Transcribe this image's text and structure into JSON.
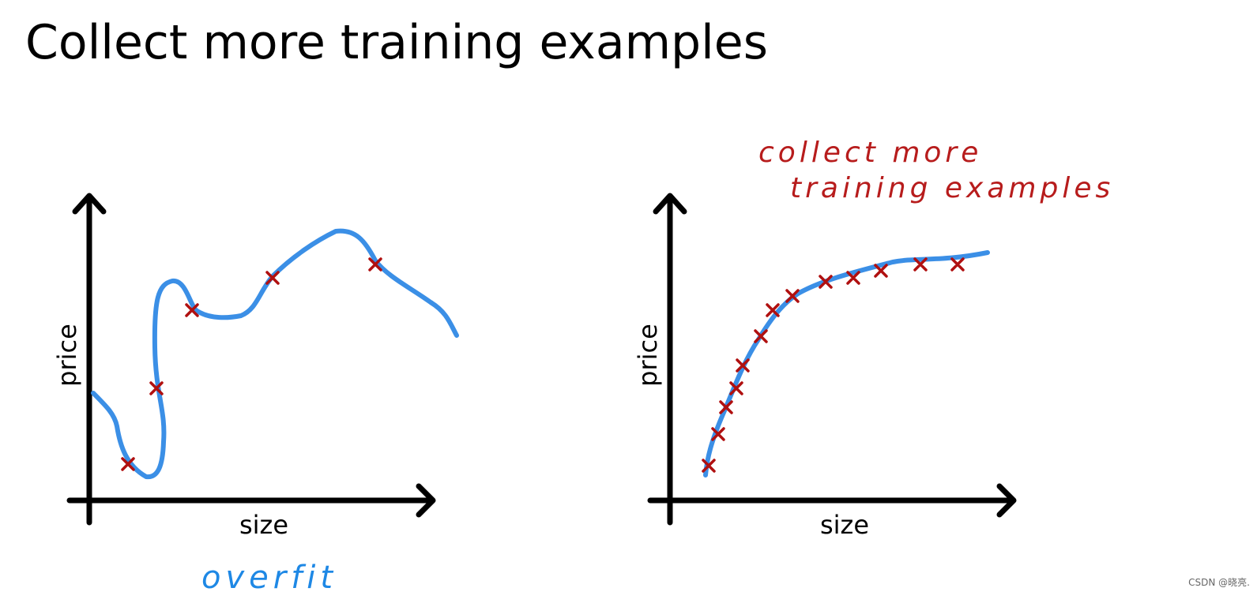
{
  "title": "Collect more training examples",
  "panels": [
    {
      "y_label": "price",
      "x_label": "size",
      "annotation_lines": [
        "overfit"
      ]
    },
    {
      "y_label": "price",
      "x_label": "size",
      "annotation_lines": [
        "collect more",
        "training examples"
      ]
    }
  ],
  "watermark": "CSDN @晓亮."
}
